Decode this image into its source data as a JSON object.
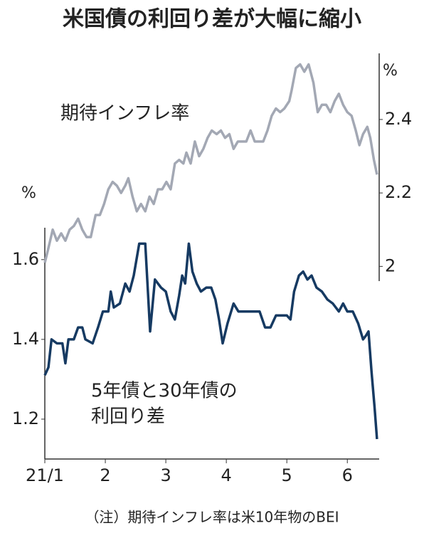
{
  "chart_data": {
    "type": "line",
    "title": "米国債の利回り差が大幅に縮小",
    "note": "（注）期待インフレ率は米10年物のBEI",
    "y_unit": "%",
    "y2_unit": "%",
    "xlim": [
      1,
      6.55
    ],
    "xticks": [
      {
        "value": 1,
        "label": "21/1"
      },
      2,
      3,
      4,
      5,
      6
    ],
    "ylim": [
      1.1,
      1.68
    ],
    "yticks": [
      1.2,
      1.4,
      1.6
    ],
    "y2lim": [
      1.96,
      2.58
    ],
    "y2ticks": [
      2.0,
      2.2,
      2.4
    ],
    "annotations": [
      "期待インフレ率",
      "5年債と30年債の",
      "利回り差"
    ],
    "series": [
      {
        "name": "期待インフレ率",
        "color": "#a3a8b4",
        "axis": "y2",
        "x": [
          1.0,
          1.06,
          1.13,
          1.2,
          1.27,
          1.34,
          1.41,
          1.48,
          1.55,
          1.62,
          1.69,
          1.76,
          1.84,
          1.91,
          1.98,
          2.05,
          2.12,
          2.19,
          2.26,
          2.33,
          2.38,
          2.45,
          2.52,
          2.59,
          2.66,
          2.73,
          2.8,
          2.87,
          2.94,
          3.01,
          3.08,
          3.15,
          3.22,
          3.29,
          3.34,
          3.41,
          3.48,
          3.55,
          3.62,
          3.69,
          3.76,
          3.84,
          3.91,
          3.98,
          4.05,
          4.12,
          4.19,
          4.26,
          4.33,
          4.4,
          4.47,
          4.54,
          4.61,
          4.68,
          4.75,
          4.82,
          4.89,
          4.96,
          5.04,
          5.08,
          5.15,
          5.22,
          5.29,
          5.36,
          5.44,
          5.51,
          5.58,
          5.65,
          5.72,
          5.79,
          5.86,
          5.93,
          6.0,
          6.07,
          6.14,
          6.2,
          6.26,
          6.33,
          6.38,
          6.44,
          6.49
        ],
        "values": [
          2.01,
          2.05,
          2.1,
          2.07,
          2.09,
          2.07,
          2.1,
          2.11,
          2.13,
          2.1,
          2.08,
          2.08,
          2.14,
          2.14,
          2.17,
          2.21,
          2.23,
          2.22,
          2.2,
          2.22,
          2.24,
          2.19,
          2.15,
          2.17,
          2.15,
          2.19,
          2.17,
          2.21,
          2.21,
          2.23,
          2.21,
          2.28,
          2.29,
          2.28,
          2.31,
          2.28,
          2.34,
          2.3,
          2.32,
          2.35,
          2.37,
          2.36,
          2.37,
          2.35,
          2.36,
          2.32,
          2.34,
          2.34,
          2.34,
          2.37,
          2.34,
          2.34,
          2.34,
          2.37,
          2.41,
          2.43,
          2.42,
          2.43,
          2.45,
          2.48,
          2.54,
          2.55,
          2.53,
          2.55,
          2.5,
          2.42,
          2.44,
          2.44,
          2.42,
          2.45,
          2.47,
          2.44,
          2.42,
          2.41,
          2.37,
          2.33,
          2.36,
          2.38,
          2.35,
          2.29,
          2.25
        ]
      },
      {
        "name": "5年債と30年債の利回り差",
        "color": "#163a62",
        "x": [
          1.0,
          1.06,
          1.11,
          1.2,
          1.29,
          1.34,
          1.39,
          1.48,
          1.55,
          1.62,
          1.67,
          1.79,
          1.88,
          1.96,
          2.05,
          2.09,
          2.14,
          2.24,
          2.33,
          2.4,
          2.47,
          2.56,
          2.66,
          2.74,
          2.82,
          2.92,
          3.0,
          3.08,
          3.15,
          3.22,
          3.27,
          3.32,
          3.38,
          3.44,
          3.51,
          3.58,
          3.67,
          3.75,
          3.82,
          3.88,
          3.94,
          4.02,
          4.12,
          4.2,
          4.28,
          4.38,
          4.47,
          4.55,
          4.64,
          4.73,
          4.82,
          4.92,
          5.0,
          5.06,
          5.12,
          5.2,
          5.27,
          5.34,
          5.41,
          5.49,
          5.58,
          5.67,
          5.76,
          5.86,
          5.93,
          6.0,
          6.09,
          6.18,
          6.26,
          6.31,
          6.35,
          6.4,
          6.45,
          6.49
        ],
        "values": [
          1.31,
          1.33,
          1.4,
          1.39,
          1.39,
          1.34,
          1.4,
          1.4,
          1.43,
          1.43,
          1.4,
          1.39,
          1.43,
          1.47,
          1.47,
          1.52,
          1.48,
          1.49,
          1.54,
          1.52,
          1.56,
          1.64,
          1.64,
          1.42,
          1.55,
          1.53,
          1.52,
          1.47,
          1.45,
          1.51,
          1.56,
          1.54,
          1.64,
          1.57,
          1.54,
          1.52,
          1.53,
          1.53,
          1.5,
          1.45,
          1.39,
          1.44,
          1.49,
          1.47,
          1.47,
          1.47,
          1.47,
          1.47,
          1.43,
          1.43,
          1.46,
          1.46,
          1.46,
          1.45,
          1.52,
          1.56,
          1.57,
          1.55,
          1.56,
          1.53,
          1.52,
          1.5,
          1.49,
          1.47,
          1.49,
          1.47,
          1.47,
          1.44,
          1.4,
          1.41,
          1.42,
          1.32,
          1.23,
          1.15
        ]
      }
    ]
  }
}
